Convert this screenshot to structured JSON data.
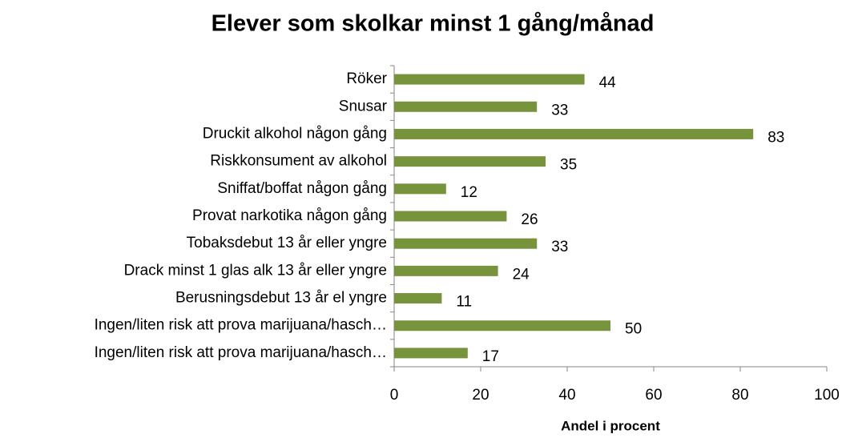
{
  "chart_data": {
    "type": "bar",
    "orientation": "horizontal",
    "title": "Elever som skolkar minst 1 gång/månad",
    "x_label": "Andel i procent",
    "categories": [
      "Röker",
      "Snusar",
      "Druckit alkohol någon gång",
      "Riskkonsument av alkohol",
      "Sniffat/boffat någon gång",
      "Provat narkotika någon gång",
      "Tobaksdebut 13 år eller yngre",
      "Drack minst 1 glas alk 13 år eller yngre",
      "Berusningsdebut 13 år el yngre",
      "Ingen/liten risk att prova marijuana/hasch…",
      "Ingen/liten risk att prova marijuana/hasch…"
    ],
    "values": [
      44,
      33,
      83,
      35,
      12,
      26,
      33,
      24,
      11,
      50,
      17
    ],
    "color": "#77933c",
    "xlim": [
      0,
      100
    ],
    "xticks": [
      0,
      20,
      40,
      60,
      80,
      100
    ]
  }
}
